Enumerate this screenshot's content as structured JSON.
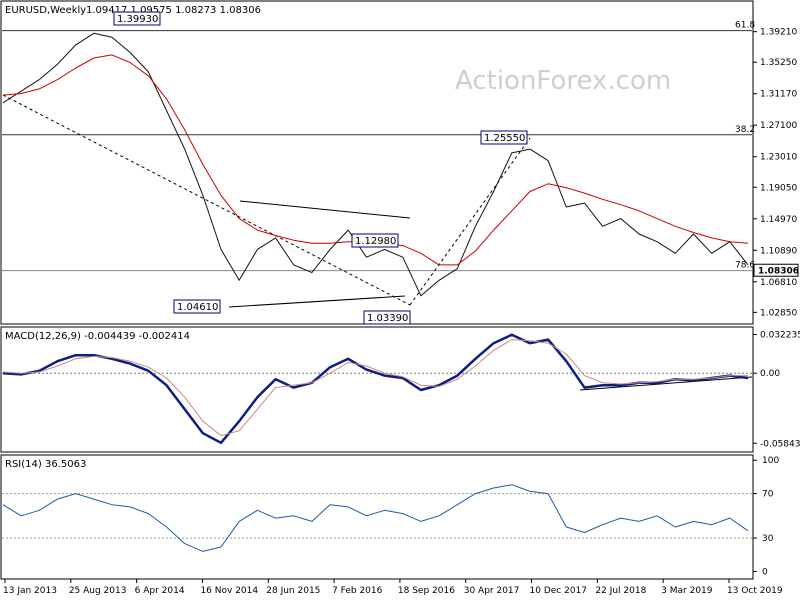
{
  "header": {
    "symbol": "EURUSD,Weekly",
    "ohlc": "1.09417 1.09575 1.08273 1.08306"
  },
  "watermark": "ActionForex.com",
  "chart_data": [
    {
      "type": "line",
      "panel": "price",
      "title": "EURUSD,Weekly",
      "x_labels": [
        "13 Jan 2013",
        "25 Aug 2013",
        "6 Apr 2014",
        "16 Nov 2014",
        "28 Jun 2015",
        "7 Feb 2016",
        "18 Sep 2016",
        "30 Apr 2017",
        "10 Dec 2017",
        "22 Jul 2018",
        "3 Mar 2019",
        "13 Oct 2019"
      ],
      "y_ticks": [
        "1.39210",
        "1.35250",
        "1.31170",
        "1.27100",
        "1.23010",
        "1.19050",
        "1.14970",
        "1.10890",
        "1.06810",
        "1.02850"
      ],
      "ylim": [
        1.016,
        1.415
      ],
      "current_price": "1.08306",
      "series": [
        {
          "color": "#111111",
          "values": [
            1.3,
            1.315,
            1.33,
            1.35,
            1.375,
            1.39,
            1.385,
            1.365,
            1.34,
            1.29,
            1.24,
            1.18,
            1.11,
            1.07,
            1.11,
            1.125,
            1.09,
            1.08,
            1.11,
            1.135,
            1.1,
            1.11,
            1.1,
            1.05,
            1.07,
            1.085,
            1.14,
            1.185,
            1.235,
            1.24,
            1.225,
            1.165,
            1.17,
            1.14,
            1.15,
            1.13,
            1.12,
            1.105,
            1.13,
            1.105,
            1.12,
            1.09
          ]
        },
        {
          "color": "#cc0000",
          "values": [
            1.31,
            1.312,
            1.318,
            1.33,
            1.345,
            1.358,
            1.362,
            1.352,
            1.335,
            1.305,
            1.265,
            1.22,
            1.18,
            1.15,
            1.135,
            1.128,
            1.122,
            1.118,
            1.118,
            1.12,
            1.12,
            1.118,
            1.115,
            1.105,
            1.09,
            1.09,
            1.108,
            1.135,
            1.16,
            1.185,
            1.195,
            1.19,
            1.183,
            1.175,
            1.168,
            1.16,
            1.15,
            1.14,
            1.132,
            1.125,
            1.12,
            1.118
          ]
        }
      ],
      "fib_levels": [
        {
          "label": "61.8",
          "value": 1.3935
        },
        {
          "label": "38.2",
          "value": 1.2585
        },
        {
          "label": "78.6",
          "value": 1.0825
        }
      ],
      "annotations": [
        {
          "label": "1.39930",
          "value": 1.3993
        },
        {
          "label": "1.25550",
          "value": 1.2555
        },
        {
          "label": "1.12980",
          "value": 1.1298
        },
        {
          "label": "1.04610",
          "value": 1.0461
        },
        {
          "label": "1.03390",
          "value": 1.0339
        }
      ]
    },
    {
      "type": "line",
      "panel": "macd",
      "title": "MACD(12,26,9) -0.004439 -0.002414",
      "y_ticks": [
        "0.032235",
        "0.00",
        "-0.058434"
      ],
      "ylim": [
        -0.064,
        0.036
      ],
      "series": [
        {
          "color": "#0a1f80",
          "values": [
            0.0,
            -0.001,
            0.002,
            0.01,
            0.015,
            0.015,
            0.012,
            0.008,
            0.002,
            -0.01,
            -0.03,
            -0.05,
            -0.058,
            -0.04,
            -0.02,
            -0.005,
            -0.012,
            -0.008,
            0.005,
            0.012,
            0.003,
            -0.002,
            -0.004,
            -0.014,
            -0.01,
            -0.002,
            0.012,
            0.025,
            0.032,
            0.025,
            0.028,
            0.01,
            -0.012,
            -0.01,
            -0.01,
            -0.008,
            -0.008,
            -0.005,
            -0.006,
            -0.004,
            -0.002,
            -0.004
          ]
        },
        {
          "color": "#cc8888",
          "values": [
            0.001,
            0.0,
            0.001,
            0.006,
            0.012,
            0.014,
            0.013,
            0.01,
            0.005,
            -0.004,
            -0.02,
            -0.04,
            -0.052,
            -0.048,
            -0.03,
            -0.012,
            -0.01,
            -0.008,
            0.0,
            0.009,
            0.006,
            0.0,
            -0.003,
            -0.01,
            -0.011,
            -0.005,
            0.006,
            0.019,
            0.028,
            0.027,
            0.025,
            0.016,
            -0.002,
            -0.008,
            -0.009,
            -0.008,
            -0.007,
            -0.005,
            -0.005,
            -0.004,
            -0.002,
            -0.002
          ]
        }
      ]
    },
    {
      "type": "line",
      "panel": "rsi",
      "title": "RSI(14) 36.5063",
      "y_ticks": [
        "100",
        "70",
        "30",
        "0"
      ],
      "ylim": [
        -5,
        102
      ],
      "series": [
        {
          "color": "#1e5aa8",
          "values": [
            60,
            50,
            55,
            65,
            70,
            65,
            60,
            58,
            52,
            40,
            25,
            18,
            22,
            45,
            55,
            48,
            50,
            45,
            60,
            58,
            50,
            55,
            52,
            45,
            50,
            60,
            70,
            75,
            78,
            72,
            70,
            40,
            35,
            42,
            48,
            45,
            50,
            40,
            45,
            42,
            48,
            36.5
          ]
        }
      ]
    }
  ]
}
